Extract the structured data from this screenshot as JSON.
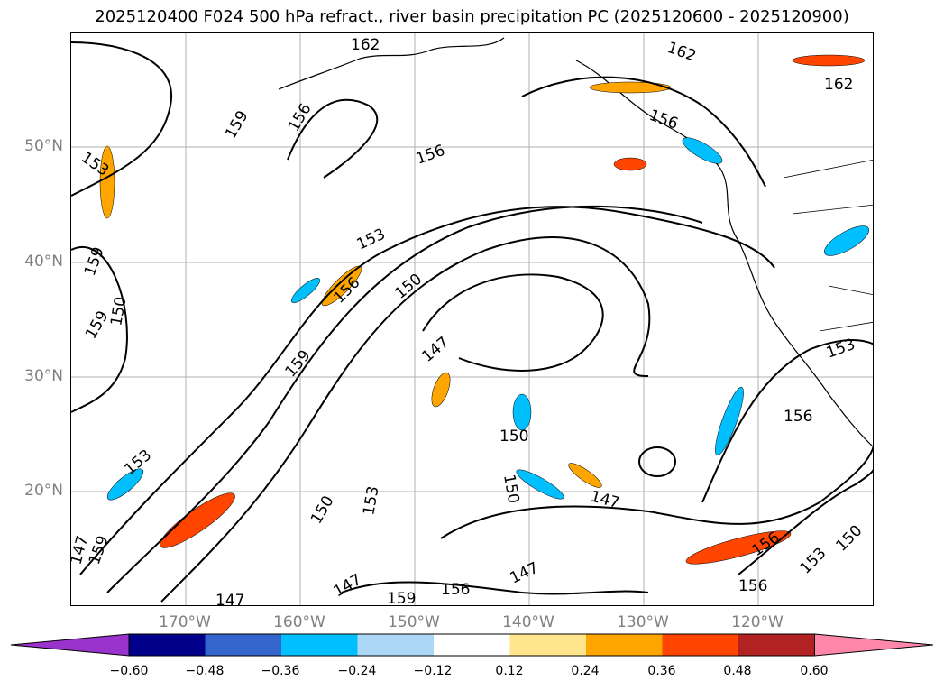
{
  "title": "2025120400 F024 500 hPa refract., river basin precipitation PC (2025120600 - 2025120900)",
  "lat_labels": [
    "50°N",
    "40°N",
    "30°N",
    "20°N"
  ],
  "lon_labels": [
    "170°W",
    "160°W",
    "150°W",
    "140°W",
    "130°W",
    "120°W"
  ],
  "contour_labels": [
    "162",
    "162",
    "162",
    "159",
    "159",
    "159",
    "159",
    "159",
    "159",
    "156",
    "156",
    "156",
    "156",
    "156",
    "156",
    "156",
    "156",
    "153",
    "153",
    "153",
    "153",
    "153",
    "153",
    "150",
    "150",
    "150",
    "150",
    "150",
    "150",
    "147",
    "147",
    "147",
    "147",
    "147",
    "147"
  ],
  "colorbar": {
    "ticks": [
      "−0.60",
      "−0.48",
      "−0.36",
      "−0.24",
      "−0.12",
      "0.12",
      "0.24",
      "0.36",
      "0.48",
      "0.60"
    ],
    "colors": [
      "#9933cc",
      "#00008b",
      "#3366cc",
      "#00bfff",
      "#add8f5",
      "#ffffff",
      "#ffe68c",
      "#ffa500",
      "#ff4500",
      "#b22222",
      "#ff88aa"
    ]
  }
}
